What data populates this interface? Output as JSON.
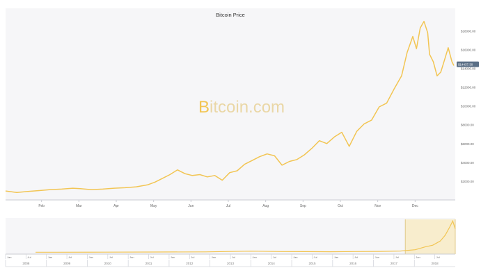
{
  "chart_data": {
    "type": "line",
    "title": "Bitcoin Price",
    "watermark": {
      "prefix": "B",
      "rest": "itcoin.com"
    },
    "colors": {
      "line": "#f2c553",
      "watermark": "#f2c553",
      "watermark_rest": "#ead7a6",
      "plot_bg": "#f6f6f8",
      "navigator_band": "#f8e9bf",
      "price_tag": "#5b6f86"
    },
    "grid": false,
    "x_labels": [
      "Feb",
      "Mar",
      "Apr",
      "May",
      "Jun",
      "Jul",
      "Aug",
      "Sep",
      "Oct",
      "Nov",
      "Dec"
    ],
    "x_domain": [
      0,
      12
    ],
    "x": [
      0,
      0.3,
      0.6,
      0.9,
      1.2,
      1.5,
      1.8,
      2.0,
      2.3,
      2.6,
      2.9,
      3.2,
      3.5,
      3.8,
      4.0,
      4.2,
      4.4,
      4.6,
      4.8,
      5.0,
      5.2,
      5.4,
      5.6,
      5.8,
      6.0,
      6.2,
      6.4,
      6.6,
      6.8,
      7.0,
      7.2,
      7.4,
      7.6,
      7.8,
      8.0,
      8.2,
      8.4,
      8.6,
      8.8,
      9.0,
      9.2,
      9.4,
      9.6,
      9.8,
      10.0,
      10.2,
      10.4,
      10.6,
      10.75,
      10.9,
      11.0,
      11.1,
      11.2,
      11.3,
      11.35,
      11.45,
      11.55,
      11.65,
      11.75,
      11.85,
      11.95,
      12.0
    ],
    "y": [
      950,
      800,
      900,
      1000,
      1100,
      1150,
      1250,
      1200,
      1100,
      1150,
      1250,
      1300,
      1400,
      1600,
      1900,
      2300,
      2700,
      3200,
      2800,
      2600,
      2700,
      2450,
      2600,
      2100,
      2900,
      3100,
      3800,
      4200,
      4600,
      4900,
      4700,
      3700,
      4100,
      4300,
      4800,
      5500,
      6300,
      6000,
      6700,
      7200,
      5700,
      7300,
      8100,
      8500,
      9900,
      10300,
      11800,
      13200,
      15700,
      17400,
      16100,
      18300,
      19000,
      17800,
      15500,
      14700,
      13200,
      13600,
      14900,
      16200,
      14700,
      14300
    ],
    "yaxis": {
      "ticks": [
        2000,
        4000,
        6000,
        8000,
        10000,
        12000,
        14000,
        16000,
        18000
      ],
      "tick_labels": [
        "$2000.00",
        "$4000.00",
        "$6000.00",
        "$8000.00",
        "$10000.00",
        "$12000.00",
        "$14000.00",
        "$16000.00",
        "$18000.00"
      ],
      "ylim": [
        0,
        19800
      ],
      "current_price": 14437.3,
      "current_label": "$14437.30"
    },
    "navigator": {
      "x_domain": [
        2009,
        2018
      ],
      "y_domain": [
        0,
        20000
      ],
      "x": [
        2009.6,
        2010.0,
        2011.0,
        2012.0,
        2013.0,
        2013.4,
        2013.9,
        2014.5,
        2015.0,
        2015.5,
        2016.0,
        2016.5,
        2016.9,
        2017.2,
        2017.4,
        2017.55,
        2017.7,
        2017.8,
        2017.9,
        2017.95,
        2018.0
      ],
      "y": [
        300,
        300,
        350,
        400,
        500,
        700,
        900,
        700,
        650,
        600,
        700,
        800,
        1000,
        1800,
        3500,
        4500,
        7000,
        10500,
        16000,
        19000,
        14300
      ],
      "selection": [
        2017.0,
        2018.0
      ],
      "months": [
        "Jan",
        "Jul",
        "Jan",
        "Jul",
        "Jan",
        "Jul",
        "Jan",
        "Jul",
        "Jan",
        "Jul",
        "Jan",
        "Jul",
        "Jan",
        "Jul",
        "Jan",
        "Jul",
        "Jan",
        "Jul",
        "Jan",
        "Jul",
        "Jan",
        "Jul"
      ],
      "years": [
        "2008",
        "2009",
        "2010",
        "2011",
        "2012",
        "2013",
        "2014",
        "2015",
        "2016",
        "2017",
        "2018"
      ]
    }
  }
}
